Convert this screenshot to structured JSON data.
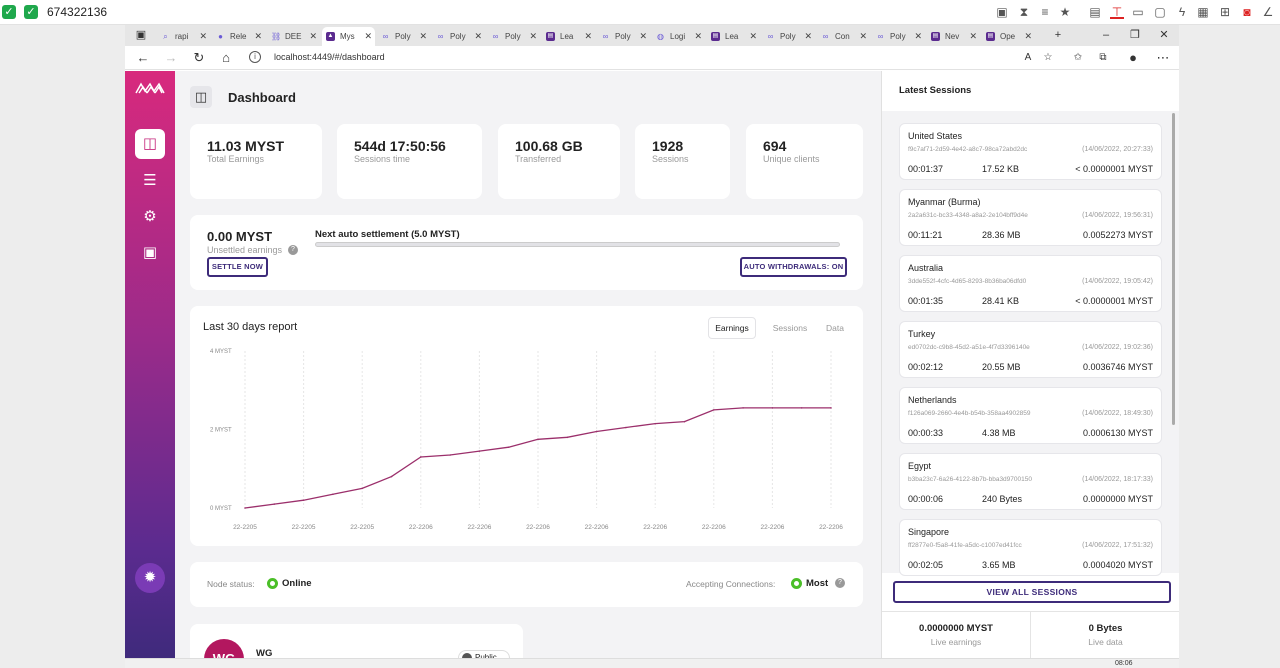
{
  "system": {
    "id_text": "674322136",
    "check_colors": [
      "#1fa84c",
      "#1fa84c"
    ]
  },
  "browser": {
    "tabs": [
      {
        "label": "rapi",
        "icon": "search-icon"
      },
      {
        "label": "Rele",
        "icon": "github-icon"
      },
      {
        "label": "DEE",
        "icon": "link-icon"
      },
      {
        "label": "Mys",
        "icon": "mysterium-icon",
        "active": true
      },
      {
        "label": "Poly",
        "icon": "polygon-icon"
      },
      {
        "label": "Poly",
        "icon": "polygon-icon"
      },
      {
        "label": "Poly",
        "icon": "polygon-icon"
      },
      {
        "label": "Lea",
        "icon": "page-icon"
      },
      {
        "label": "Poly",
        "icon": "polygon-icon"
      },
      {
        "label": "Logi",
        "icon": "globe-icon"
      },
      {
        "label": "Lea",
        "icon": "page-icon"
      },
      {
        "label": "Poly",
        "icon": "polygon-icon"
      },
      {
        "label": "Con",
        "icon": "polygon-icon"
      },
      {
        "label": "Poly",
        "icon": "polygon-icon"
      },
      {
        "label": "Nev",
        "icon": "page-icon"
      },
      {
        "label": "Ope",
        "icon": "page-icon"
      }
    ],
    "url": "localhost:4449/#/dashboard"
  },
  "header": {
    "title": "Dashboard"
  },
  "stats": [
    {
      "value": "11.03 MYST",
      "label": "Total Earnings"
    },
    {
      "value": "544d 17:50:56",
      "label": "Sessions time"
    },
    {
      "value": "100.68 GB",
      "label": "Transferred"
    },
    {
      "value": "1928",
      "label": "Sessions"
    },
    {
      "value": "694",
      "label": "Unique clients"
    }
  ],
  "settlement": {
    "unsettled_value": "0.00 MYST",
    "unsettled_label": "Unsettled earnings",
    "settle_button": "SETTLE NOW",
    "next_label": "Next auto settlement (5.0 MYST)",
    "progress": 0.0,
    "auto_withdrawals": "AUTO WITHDRAWALS: ON"
  },
  "report": {
    "title": "Last 30 days report",
    "tabs": [
      "Earnings",
      "Sessions",
      "Data"
    ],
    "active_tab": "Earnings"
  },
  "chart_data": {
    "type": "line",
    "title": "Last 30 days report",
    "ylabel": "MYST",
    "ylim": [
      0,
      4
    ],
    "yticks": [
      {
        "value": 0,
        "label": "0 MYST"
      },
      {
        "value": 2,
        "label": "2 MYST"
      },
      {
        "value": 4,
        "label": "4 MYST"
      }
    ],
    "categories": [
      "22-2205",
      "22-2205",
      "22-2205",
      "22-2206",
      "22-2206",
      "22-2206",
      "22-2206",
      "22-2206",
      "22-2206",
      "22-2206",
      "22-2206"
    ],
    "series": [
      {
        "name": "Earnings",
        "color": "#9b2f6b",
        "x": [
          0,
          0.5,
          1,
          1.5,
          2,
          2.5,
          3,
          3.5,
          4,
          4.5,
          5,
          5.5,
          6,
          6.5,
          7,
          7.5,
          8,
          8.5,
          9,
          9.5,
          10
        ],
        "values": [
          0.0,
          0.1,
          0.2,
          0.35,
          0.5,
          0.8,
          1.3,
          1.35,
          1.45,
          1.55,
          1.75,
          1.8,
          1.95,
          2.05,
          2.15,
          2.2,
          2.5,
          2.55,
          2.55,
          2.55,
          2.55
        ]
      }
    ]
  },
  "node_status": {
    "label": "Node status:",
    "value": "Online",
    "accepting_label": "Accepting Connections:",
    "accepting_value": "Most",
    "status_color": "#4bbf28"
  },
  "wg_card": {
    "avatar": "WG",
    "name": "WG",
    "badge": "Public"
  },
  "sessions_panel": {
    "title": "Latest Sessions",
    "sessions": [
      {
        "country": "United States",
        "id": "f9c7af71-2d59-4e42-a8c7-98ca72abd2dc",
        "date": "(14/06/2022, 20:27:33)",
        "duration": "00:01:37",
        "size": "17.52 KB",
        "earnings": "< 0.0000001 MYST"
      },
      {
        "country": "Myanmar (Burma)",
        "id": "2a2a631c-bc33-4348-a8a2-2e104bff9d4e",
        "date": "(14/06/2022, 19:56:31)",
        "duration": "00:11:21",
        "size": "28.36 MB",
        "earnings": "0.0052273 MYST"
      },
      {
        "country": "Australia",
        "id": "3dde552f-4cfc-4d65-8293-8b36ba06dfd0",
        "date": "(14/06/2022, 19:05:42)",
        "duration": "00:01:35",
        "size": "28.41 KB",
        "earnings": "< 0.0000001 MYST"
      },
      {
        "country": "Turkey",
        "id": "ed0702dc-c9b8-45d2-a51e-4f7d3396140e",
        "date": "(14/06/2022, 19:02:36)",
        "duration": "00:02:12",
        "size": "20.55 MB",
        "earnings": "0.0036746 MYST"
      },
      {
        "country": "Netherlands",
        "id": "f126a069-2660-4e4b-b54b-358aa4902859",
        "date": "(14/06/2022, 18:49:30)",
        "duration": "00:00:33",
        "size": "4.38 MB",
        "earnings": "0.0006130 MYST"
      },
      {
        "country": "Egypt",
        "id": "b3ba23c7-6a26-4122-8b7b-bba3d9700150",
        "date": "(14/06/2022, 18:17:33)",
        "duration": "00:00:06",
        "size": "240 Bytes",
        "earnings": "0.0000000 MYST"
      },
      {
        "country": "Singapore",
        "id": "ff2877e0-f5a8-41fe-a5dc-c1007ed41fcc",
        "date": "(14/06/2022, 17:51:32)",
        "duration": "00:02:05",
        "size": "3.65 MB",
        "earnings": "0.0004020 MYST"
      }
    ],
    "view_all": "VIEW ALL SESSIONS",
    "live_earnings_value": "0.0000000 MYST",
    "live_earnings_label": "Live earnings",
    "live_data_value": "0 Bytes",
    "live_data_label": "Live data"
  },
  "taskbar": {
    "clock": "08:06"
  }
}
